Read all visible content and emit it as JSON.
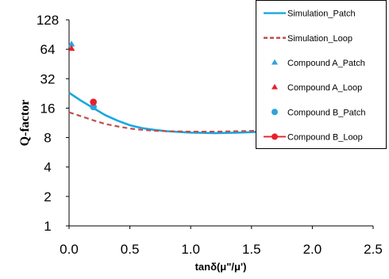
{
  "chart_data": {
    "type": "line",
    "xlabel": "tanδ(μ\"/μ')",
    "ylabel": "Q-factor",
    "xlim": [
      0,
      2.5
    ],
    "ylim": [
      1,
      128
    ],
    "yscale": "log2",
    "xticks": [
      "0.0",
      "0.5",
      "1.0",
      "1.5",
      "2.0",
      "2.5"
    ],
    "yticks": [
      "1",
      "2",
      "4",
      "8",
      "16",
      "32",
      "64",
      "128"
    ],
    "grid": false,
    "legend_position": "top-right",
    "series": [
      {
        "name": "Simulation_Patch",
        "style": "solid-line",
        "color": "#1aa7e0",
        "x": [
          0.0,
          0.1,
          0.2,
          0.3,
          0.4,
          0.5,
          0.6,
          0.7,
          0.8,
          1.0,
          1.2,
          1.4,
          1.6,
          1.8,
          2.0,
          2.2,
          2.5
        ],
        "y": [
          23,
          19,
          16,
          13.5,
          11.9,
          10.7,
          10.0,
          9.6,
          9.3,
          9.0,
          8.9,
          9.0,
          9.2,
          9.5,
          9.8,
          10.1,
          10.6
        ]
      },
      {
        "name": "Simulation_Loop",
        "style": "dashed-line",
        "color": "#c0504d",
        "x": [
          0.0,
          0.1,
          0.2,
          0.3,
          0.4,
          0.5,
          0.6,
          0.7,
          0.8,
          1.0,
          1.2,
          1.4,
          1.6,
          1.8,
          2.0,
          2.2,
          2.5
        ],
        "y": [
          14.5,
          13.2,
          12.0,
          11.0,
          10.4,
          9.9,
          9.6,
          9.4,
          9.3,
          9.2,
          9.2,
          9.3,
          9.4,
          9.6,
          9.8,
          10.0,
          10.3
        ]
      },
      {
        "name": "Compound A_Patch",
        "style": "triangle",
        "color": "#2ea3dc",
        "x": [
          0.02
        ],
        "y": [
          72
        ]
      },
      {
        "name": "Compound A_Loop",
        "style": "triangle",
        "color": "#e8202a",
        "x": [
          0.02
        ],
        "y": [
          65
        ]
      },
      {
        "name": "Compound B_Patch",
        "style": "circle",
        "color": "#2ea3dc",
        "x": [
          0.2
        ],
        "y": [
          16.5
        ]
      },
      {
        "name": "Compound B_Loop",
        "style": "circle-line",
        "color": "#e8202a",
        "x": [
          0.2
        ],
        "y": [
          18.5
        ]
      }
    ]
  }
}
